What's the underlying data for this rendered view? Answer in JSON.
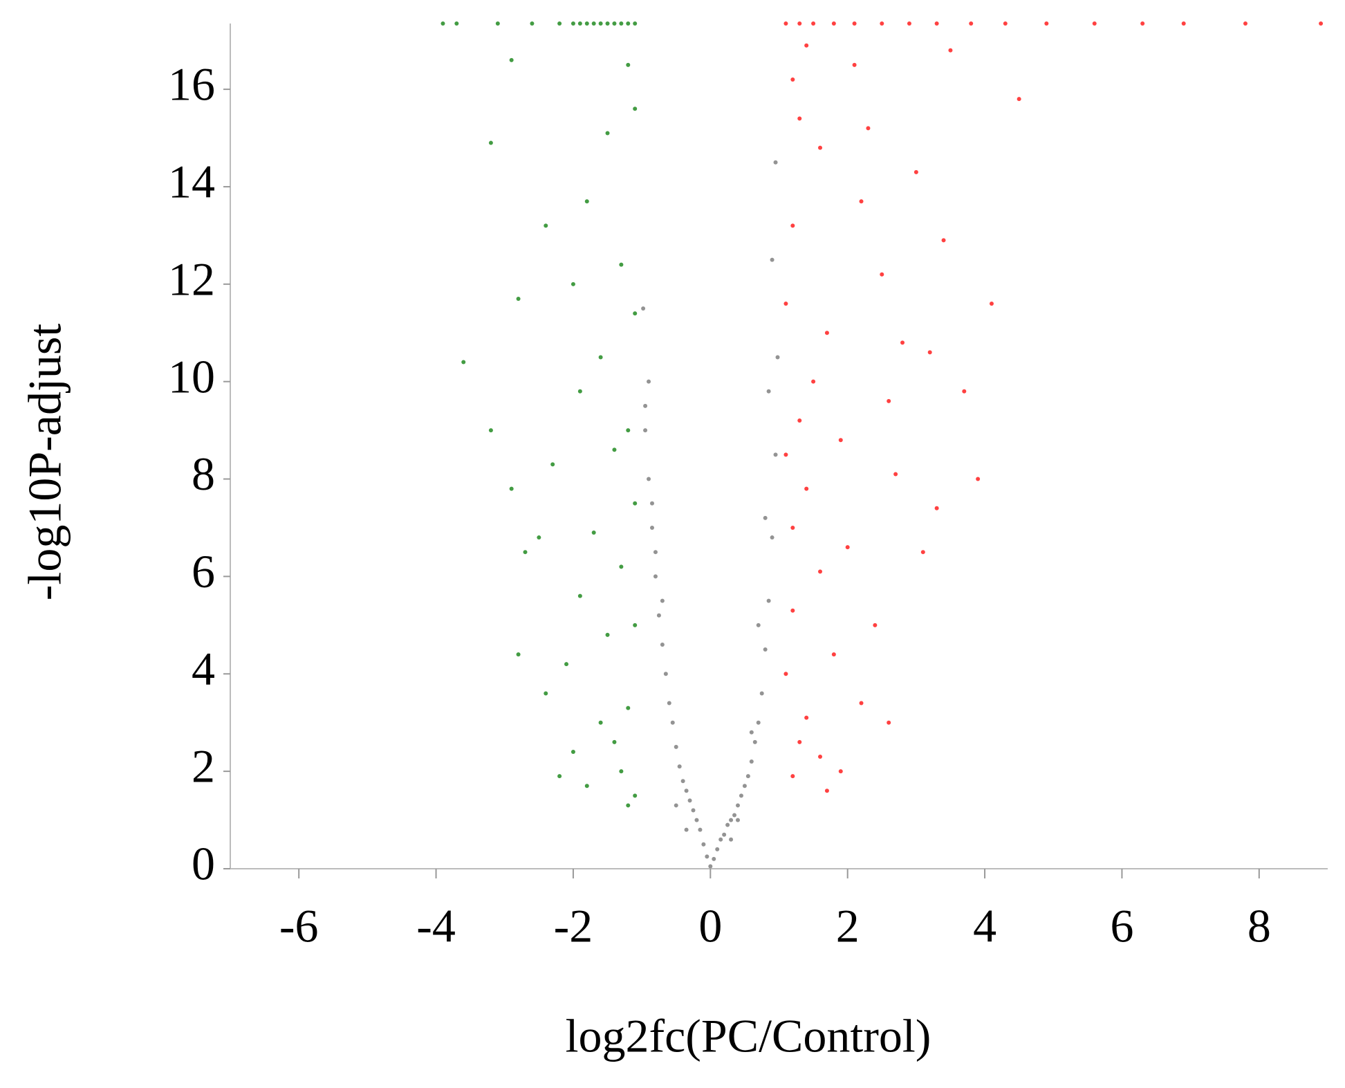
{
  "chart_data": {
    "type": "scatter",
    "x_label": "log2fc(PC/Control)",
    "y_label": "-log10P-adjust",
    "xlim": [
      -7,
      9
    ],
    "xticks": [
      -6,
      -4,
      -2,
      0,
      2,
      4,
      6,
      8
    ],
    "ylim": [
      0,
      17.35
    ],
    "yticks": [
      0,
      2,
      4,
      6,
      8,
      10,
      12,
      14,
      16
    ],
    "grid": false,
    "series": [
      {
        "color": "#808080",
        "x": [
          0,
          0.05,
          -0.05,
          0.1,
          -0.1,
          0.15,
          -0.15,
          0.2,
          -0.2,
          0.25,
          -0.25,
          0.3,
          -0.3,
          0.35,
          -0.35,
          0.4,
          -0.4,
          0.45,
          -0.45,
          0.5,
          -0.5,
          0.55,
          -0.55,
          0.6,
          -0.6,
          0.65,
          -0.65,
          0.7,
          -0.7,
          0.75,
          -0.75,
          0.8,
          -0.8,
          0.85,
          -0.85,
          0.9,
          -0.9,
          0.95,
          -0.95,
          0.98,
          -0.98,
          0.9,
          -0.9,
          0.95,
          -0.95,
          0.85,
          -0.85,
          0.8,
          -0.8,
          0.7,
          -0.7,
          0.6,
          -0.5,
          0.4,
          -0.35,
          0.3
        ],
        "values": [
          0.05,
          0.2,
          0.25,
          0.4,
          0.5,
          0.6,
          0.8,
          0.7,
          1.0,
          0.9,
          1.2,
          1.0,
          1.4,
          1.1,
          1.6,
          1.3,
          1.8,
          1.5,
          2.1,
          1.7,
          2.5,
          1.9,
          3.0,
          2.2,
          3.4,
          2.6,
          4.0,
          3.0,
          4.6,
          3.6,
          5.2,
          4.5,
          6.0,
          5.5,
          7.0,
          6.8,
          8.0,
          8.5,
          9.0,
          10.5,
          11.5,
          12.5,
          10.0,
          14.5,
          9.5,
          9.8,
          7.5,
          7.2,
          6.5,
          5.0,
          5.5,
          2.8,
          1.3,
          1.0,
          0.8,
          0.6
        ]
      },
      {
        "color": "#228b22",
        "x": [
          -2.0,
          -1.9,
          -1.8,
          -1.7,
          -1.6,
          -1.5,
          -1.4,
          -1.3,
          -1.2,
          -1.1,
          -2.2,
          -2.6,
          -3.1,
          -3.7,
          -3.9,
          -2.9,
          -3.2,
          -1.2,
          -1.1,
          -1.5,
          -1.8,
          -1.3,
          -2.4,
          -2.0,
          -1.1,
          -1.6,
          -2.8,
          -1.9,
          -1.2,
          -1.4,
          -3.6,
          -2.9,
          -2.3,
          -1.1,
          -1.7,
          -3.2,
          -1.3,
          -2.5,
          -1.9,
          -1.1,
          -1.5,
          -2.1,
          -2.8,
          -2.4,
          -1.2,
          -1.6,
          -2.0,
          -1.3,
          -1.1,
          -1.8,
          -2.7,
          -1.4,
          -2.2,
          -1.2
        ],
        "values": [
          17.35,
          17.35,
          17.35,
          17.35,
          17.35,
          17.35,
          17.35,
          17.35,
          17.35,
          17.35,
          17.35,
          17.35,
          17.35,
          17.35,
          17.35,
          16.6,
          14.9,
          16.5,
          15.6,
          15.1,
          13.7,
          12.4,
          13.2,
          12.0,
          11.4,
          10.5,
          11.7,
          9.8,
          9.0,
          8.6,
          10.4,
          7.8,
          8.3,
          7.5,
          6.9,
          9.0,
          6.2,
          6.8,
          5.6,
          5.0,
          4.8,
          4.2,
          4.4,
          3.6,
          3.3,
          3.0,
          2.4,
          2.0,
          1.5,
          1.7,
          6.5,
          2.6,
          1.9,
          1.3
        ]
      },
      {
        "color": "#ff2020",
        "x": [
          1.1,
          1.3,
          1.5,
          1.8,
          2.1,
          2.5,
          2.9,
          3.3,
          3.8,
          4.3,
          4.9,
          5.6,
          6.3,
          6.9,
          7.8,
          8.9,
          1.4,
          1.2,
          2.1,
          3.5,
          2.3,
          1.3,
          3.0,
          1.6,
          2.2,
          4.5,
          1.2,
          3.4,
          2.5,
          1.1,
          1.7,
          2.8,
          3.2,
          1.5,
          4.1,
          2.6,
          1.3,
          3.7,
          1.9,
          1.1,
          2.7,
          1.4,
          3.9,
          1.2,
          2.0,
          1.6,
          3.1,
          1.2,
          2.4,
          1.8,
          1.1,
          2.2,
          1.4,
          1.3,
          1.6,
          1.2,
          1.9,
          2.6,
          3.3,
          1.7
        ],
        "values": [
          17.35,
          17.35,
          17.35,
          17.35,
          17.35,
          17.35,
          17.35,
          17.35,
          17.35,
          17.35,
          17.35,
          17.35,
          17.35,
          17.35,
          17.35,
          17.35,
          16.9,
          16.2,
          16.5,
          16.8,
          15.2,
          15.4,
          14.3,
          14.8,
          13.7,
          15.8,
          13.2,
          12.9,
          12.2,
          11.6,
          11.0,
          10.8,
          10.6,
          10.0,
          11.6,
          9.6,
          9.2,
          9.8,
          8.8,
          8.5,
          8.1,
          7.8,
          8.0,
          7.0,
          6.6,
          6.1,
          6.5,
          5.3,
          5.0,
          4.4,
          4.0,
          3.4,
          3.1,
          2.6,
          2.3,
          1.9,
          2.0,
          3.0,
          7.4,
          1.6
        ]
      }
    ]
  }
}
